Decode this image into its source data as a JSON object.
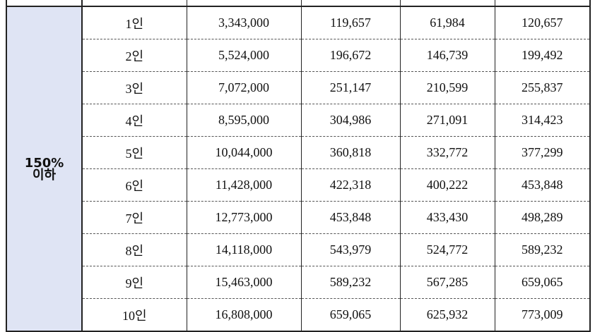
{
  "group_label": [
    "150%",
    "이하"
  ],
  "rows": [
    [
      "1인",
      "3,343,000",
      "119,657",
      "61,984",
      "120,657"
    ],
    [
      "2인",
      "5,524,000",
      "196,672",
      "146,739",
      "199,492"
    ],
    [
      "3인",
      "7,072,000",
      "251,147",
      "210,599",
      "255,837"
    ],
    [
      "4인",
      "8,595,000",
      "304,986",
      "271,091",
      "314,423"
    ],
    [
      "5인",
      "10,044,000",
      "360,818",
      "332,772",
      "377,299"
    ],
    [
      "6인",
      "11,428,000",
      "422,318",
      "400,222",
      "453,848"
    ],
    [
      "7인",
      "12,773,000",
      "453,848",
      "433,430",
      "498,289"
    ],
    [
      "8인",
      "14,118,000",
      "543,979",
      "524,772",
      "589,232"
    ],
    [
      "9인",
      "15,463,000",
      "589,232",
      "567,285",
      "659,065"
    ],
    [
      "10인",
      "16,808,000",
      "659,065",
      "625,932",
      "773,009"
    ]
  ]
}
